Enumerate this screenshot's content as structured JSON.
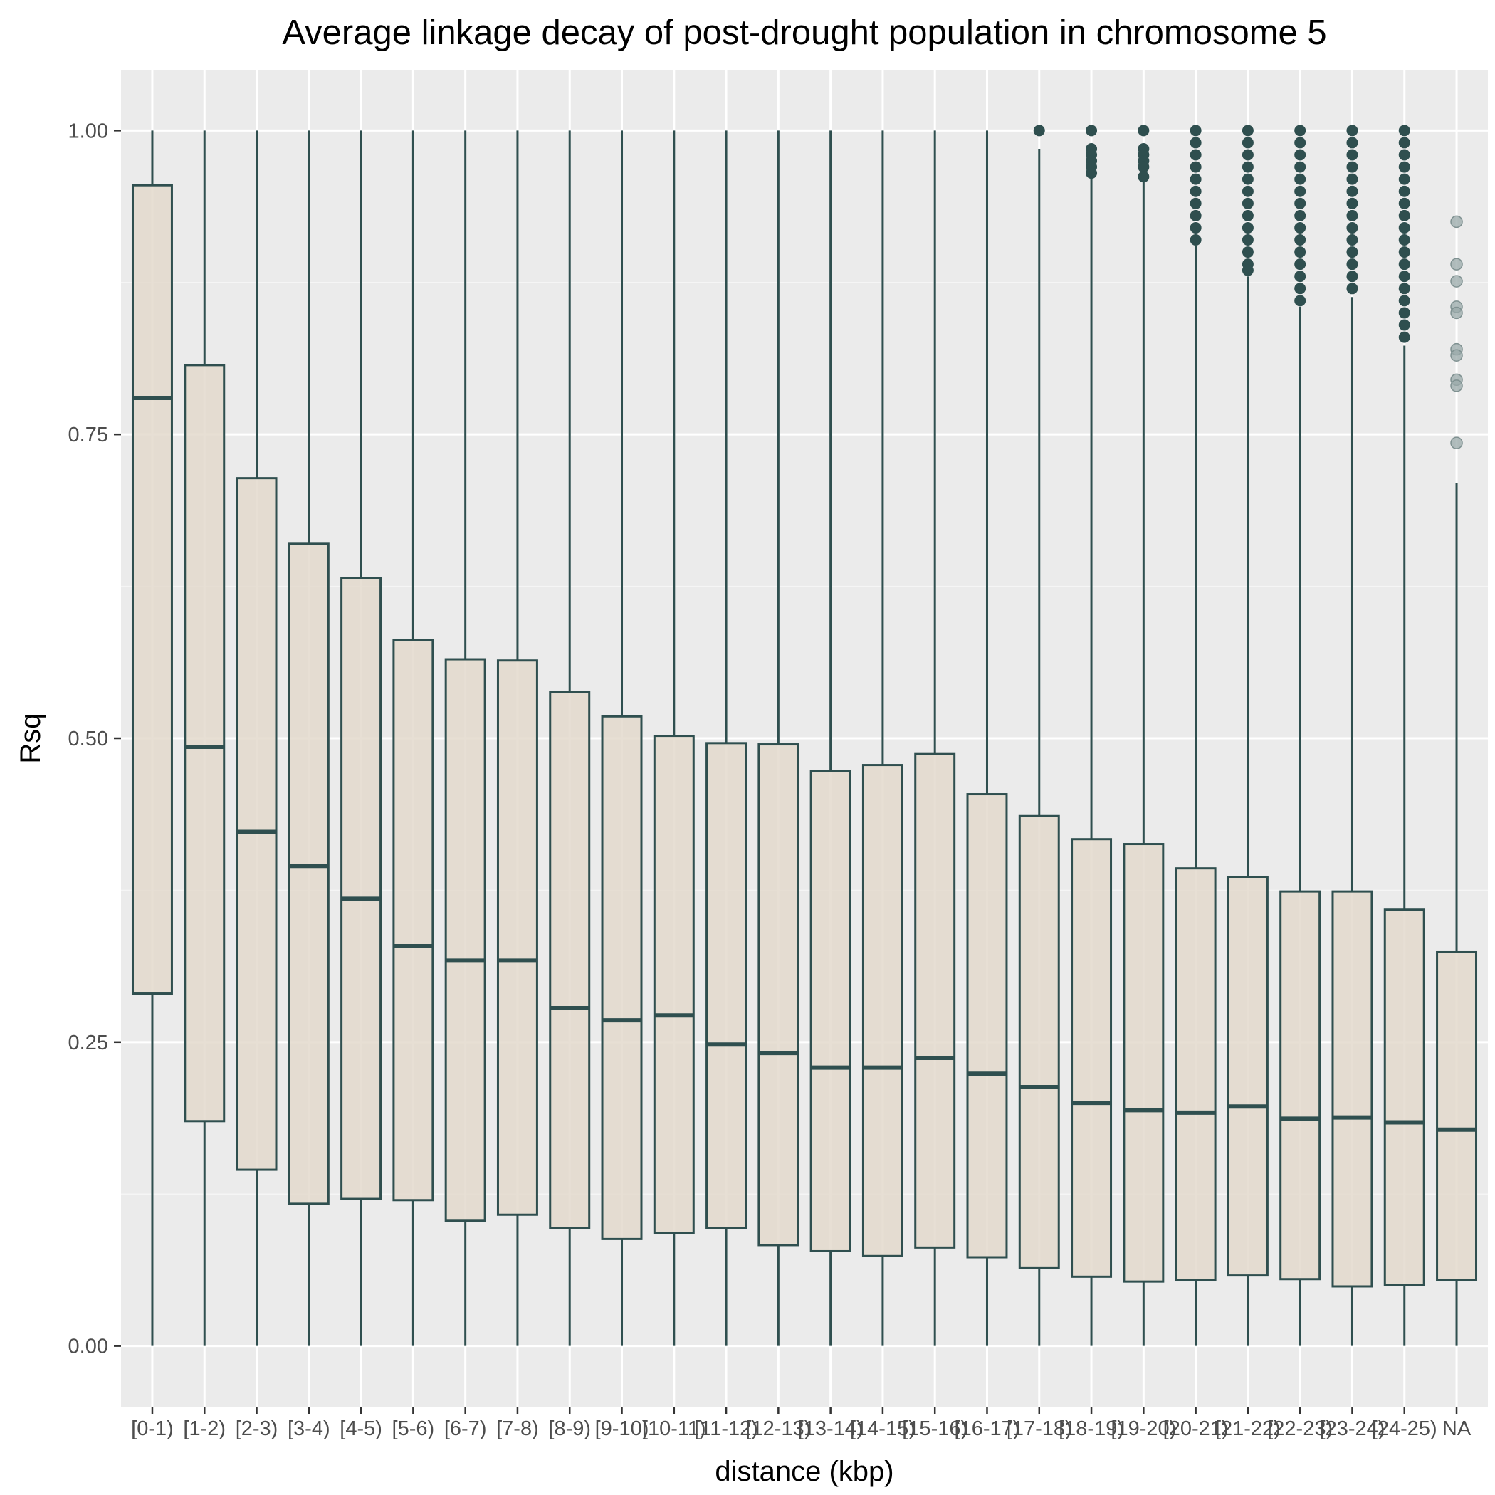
{
  "chart_data": {
    "type": "box",
    "title": "Average linkage decay of post-drought population in chromosome  5",
    "xlabel": "distance (kbp)",
    "ylabel": "Rsq",
    "ylim": [
      -0.05,
      1.05
    ],
    "y_ticks": [
      0.0,
      0.25,
      0.5,
      0.75,
      1.0
    ],
    "y_tick_labels": [
      "0.00",
      "0.25",
      "0.50",
      "0.75",
      "1.00"
    ],
    "grid": true,
    "categories": [
      "[0-1)",
      "[1-2)",
      "[2-3)",
      "[3-4)",
      "[4-5)",
      "[5-6)",
      "[6-7)",
      "[7-8)",
      "[8-9)",
      "[9-10)",
      "[10-11)",
      "[11-12)",
      "[12-13)",
      "[13-14)",
      "[14-15)",
      "[15-16)",
      "[16-17)",
      "[17-18)",
      "[18-19)",
      "[19-20)",
      "[20-21)",
      "[21-22)",
      "[22-23)",
      "[23-24)",
      "[24-25)",
      "NA"
    ],
    "boxes": [
      {
        "min": 0.0,
        "q1": 0.29,
        "median": 0.78,
        "q3": 0.955,
        "max": 1.0
      },
      {
        "min": 0.0,
        "q1": 0.185,
        "median": 0.493,
        "q3": 0.807,
        "max": 1.0
      },
      {
        "min": 0.0,
        "q1": 0.145,
        "median": 0.423,
        "q3": 0.714,
        "max": 1.0
      },
      {
        "min": 0.0,
        "q1": 0.117,
        "median": 0.395,
        "q3": 0.66,
        "max": 1.0
      },
      {
        "min": 0.0,
        "q1": 0.121,
        "median": 0.368,
        "q3": 0.632,
        "max": 1.0
      },
      {
        "min": 0.0,
        "q1": 0.12,
        "median": 0.329,
        "q3": 0.581,
        "max": 1.0
      },
      {
        "min": 0.0,
        "q1": 0.103,
        "median": 0.317,
        "q3": 0.565,
        "max": 1.0
      },
      {
        "min": 0.0,
        "q1": 0.108,
        "median": 0.317,
        "q3": 0.564,
        "max": 1.0
      },
      {
        "min": 0.0,
        "q1": 0.097,
        "median": 0.278,
        "q3": 0.538,
        "max": 1.0
      },
      {
        "min": 0.0,
        "q1": 0.088,
        "median": 0.268,
        "q3": 0.518,
        "max": 1.0
      },
      {
        "min": 0.0,
        "q1": 0.093,
        "median": 0.272,
        "q3": 0.502,
        "max": 1.0
      },
      {
        "min": 0.0,
        "q1": 0.097,
        "median": 0.248,
        "q3": 0.496,
        "max": 1.0
      },
      {
        "min": 0.0,
        "q1": 0.083,
        "median": 0.241,
        "q3": 0.495,
        "max": 1.0
      },
      {
        "min": 0.0,
        "q1": 0.078,
        "median": 0.229,
        "q3": 0.473,
        "max": 1.0
      },
      {
        "min": 0.0,
        "q1": 0.074,
        "median": 0.229,
        "q3": 0.478,
        "max": 1.0
      },
      {
        "min": 0.0,
        "q1": 0.081,
        "median": 0.237,
        "q3": 0.487,
        "max": 1.0
      },
      {
        "min": 0.0,
        "q1": 0.073,
        "median": 0.224,
        "q3": 0.454,
        "max": 1.0
      },
      {
        "min": 0.0,
        "q1": 0.064,
        "median": 0.213,
        "q3": 0.436,
        "max": 0.985
      },
      {
        "min": 0.0,
        "q1": 0.057,
        "median": 0.2,
        "q3": 0.417,
        "max": 0.962
      },
      {
        "min": 0.0,
        "q1": 0.053,
        "median": 0.194,
        "q3": 0.413,
        "max": 0.958
      },
      {
        "min": 0.0,
        "q1": 0.054,
        "median": 0.192,
        "q3": 0.393,
        "max": 0.905
      },
      {
        "min": 0.0,
        "q1": 0.058,
        "median": 0.197,
        "q3": 0.386,
        "max": 0.88
      },
      {
        "min": 0.0,
        "q1": 0.055,
        "median": 0.187,
        "q3": 0.374,
        "max": 0.855
      },
      {
        "min": 0.0,
        "q1": 0.049,
        "median": 0.188,
        "q3": 0.374,
        "max": 0.863
      },
      {
        "min": 0.0,
        "q1": 0.05,
        "median": 0.184,
        "q3": 0.359,
        "max": 0.823
      },
      {
        "min": 0.0,
        "q1": 0.054,
        "median": 0.178,
        "q3": 0.324,
        "max": 0.71
      }
    ],
    "outliers": [
      {
        "category": "[17-18)",
        "values": [
          1.0
        ]
      },
      {
        "category": "[18-19)",
        "values": [
          1.0,
          0.985,
          0.98,
          0.975,
          0.97,
          0.965
        ]
      },
      {
        "category": "[19-20)",
        "values": [
          1.0,
          0.985,
          0.98,
          0.975,
          0.97,
          0.962
        ]
      },
      {
        "category": "[20-21)",
        "values": [
          1.0,
          0.99,
          0.98,
          0.97,
          0.96,
          0.95,
          0.94,
          0.93,
          0.92,
          0.91
        ]
      },
      {
        "category": "[21-22)",
        "values": [
          1.0,
          0.99,
          0.98,
          0.97,
          0.96,
          0.95,
          0.94,
          0.93,
          0.92,
          0.91,
          0.9,
          0.89,
          0.885
        ]
      },
      {
        "category": "[22-23)",
        "values": [
          1.0,
          0.99,
          0.98,
          0.97,
          0.96,
          0.95,
          0.94,
          0.93,
          0.92,
          0.91,
          0.9,
          0.89,
          0.88,
          0.87,
          0.86
        ]
      },
      {
        "category": "[23-24)",
        "values": [
          1.0,
          0.99,
          0.98,
          0.97,
          0.96,
          0.95,
          0.94,
          0.93,
          0.92,
          0.91,
          0.9,
          0.89,
          0.88,
          0.87
        ]
      },
      {
        "category": "[24-25)",
        "values": [
          1.0,
          0.99,
          0.98,
          0.97,
          0.96,
          0.95,
          0.94,
          0.93,
          0.92,
          0.91,
          0.9,
          0.89,
          0.88,
          0.87,
          0.86,
          0.85,
          0.84,
          0.83
        ]
      },
      {
        "category": "NA",
        "values": [
          0.925,
          0.89,
          0.876,
          0.855,
          0.85,
          0.82,
          0.815,
          0.795,
          0.79,
          0.743
        ],
        "faded": true
      }
    ],
    "colors": {
      "panel_background": "#ebebeb",
      "grid_major": "#ffffff",
      "grid_minor": "#f5f5f5",
      "box_fill": "#e3d9cc",
      "box_stroke": "#2f4f4f",
      "outlier_faded": "#9aaaaa"
    }
  }
}
